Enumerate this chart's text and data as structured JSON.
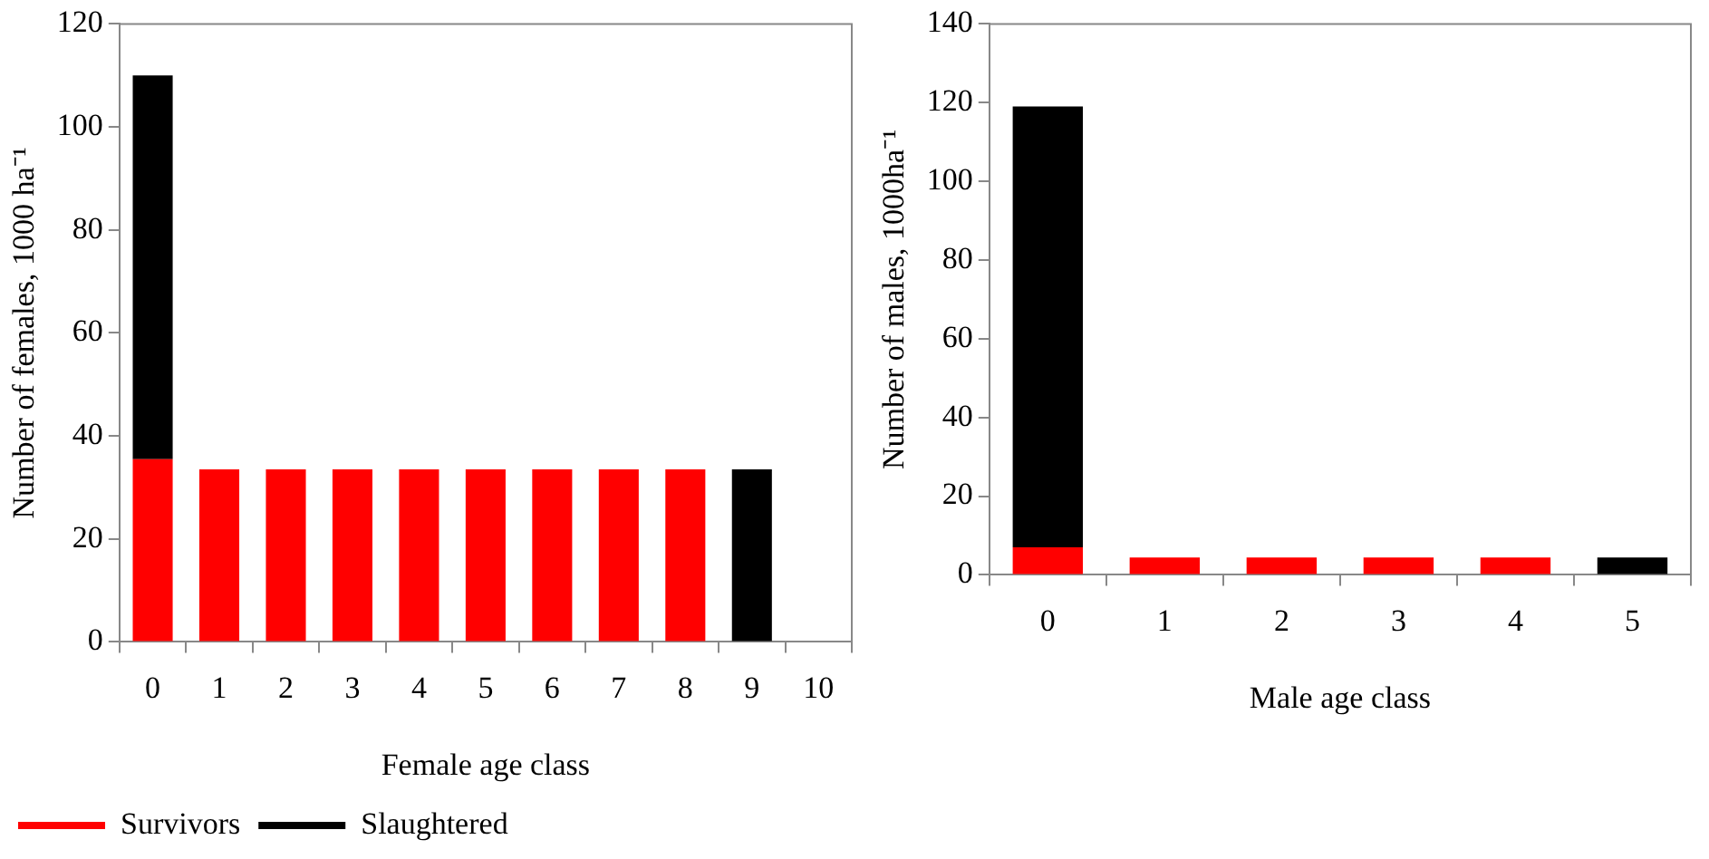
{
  "chart_data": [
    {
      "type": "bar",
      "stacked": true,
      "xlabel": "Female age class",
      "ylabel": "Number of females, 1000 ha⁻¹",
      "categories": [
        "0",
        "1",
        "2",
        "3",
        "4",
        "5",
        "6",
        "7",
        "8",
        "9",
        "10"
      ],
      "ylim": [
        0,
        120
      ],
      "yticks": [
        0,
        20,
        40,
        60,
        80,
        100,
        120
      ],
      "grid": false,
      "legend": "bottom left",
      "series": [
        {
          "name": "Survivors",
          "color": "#ff0000",
          "values": [
            35.5,
            33.5,
            33.5,
            33.5,
            33.5,
            33.5,
            33.5,
            33.5,
            33.5,
            null,
            null
          ]
        },
        {
          "name": "Slaughtered",
          "color": "#000000",
          "values": [
            74.5,
            null,
            null,
            null,
            null,
            null,
            null,
            null,
            null,
            33.5,
            null
          ]
        }
      ]
    },
    {
      "type": "bar",
      "stacked": true,
      "xlabel": "Male age class",
      "ylabel": "Number of males, 1000ha⁻¹",
      "categories": [
        "0",
        "1",
        "2",
        "3",
        "4",
        "5"
      ],
      "ylim": [
        0,
        140
      ],
      "yticks": [
        0,
        20,
        40,
        60,
        80,
        100,
        120,
        140
      ],
      "grid": false,
      "legend": false,
      "series": [
        {
          "color": "#ff0000",
          "values": [
            7,
            4.4,
            4.4,
            4.4,
            4.4,
            null
          ]
        },
        {
          "color": "#000000",
          "values": [
            112,
            null,
            null,
            null,
            null,
            4.4
          ]
        }
      ]
    }
  ]
}
